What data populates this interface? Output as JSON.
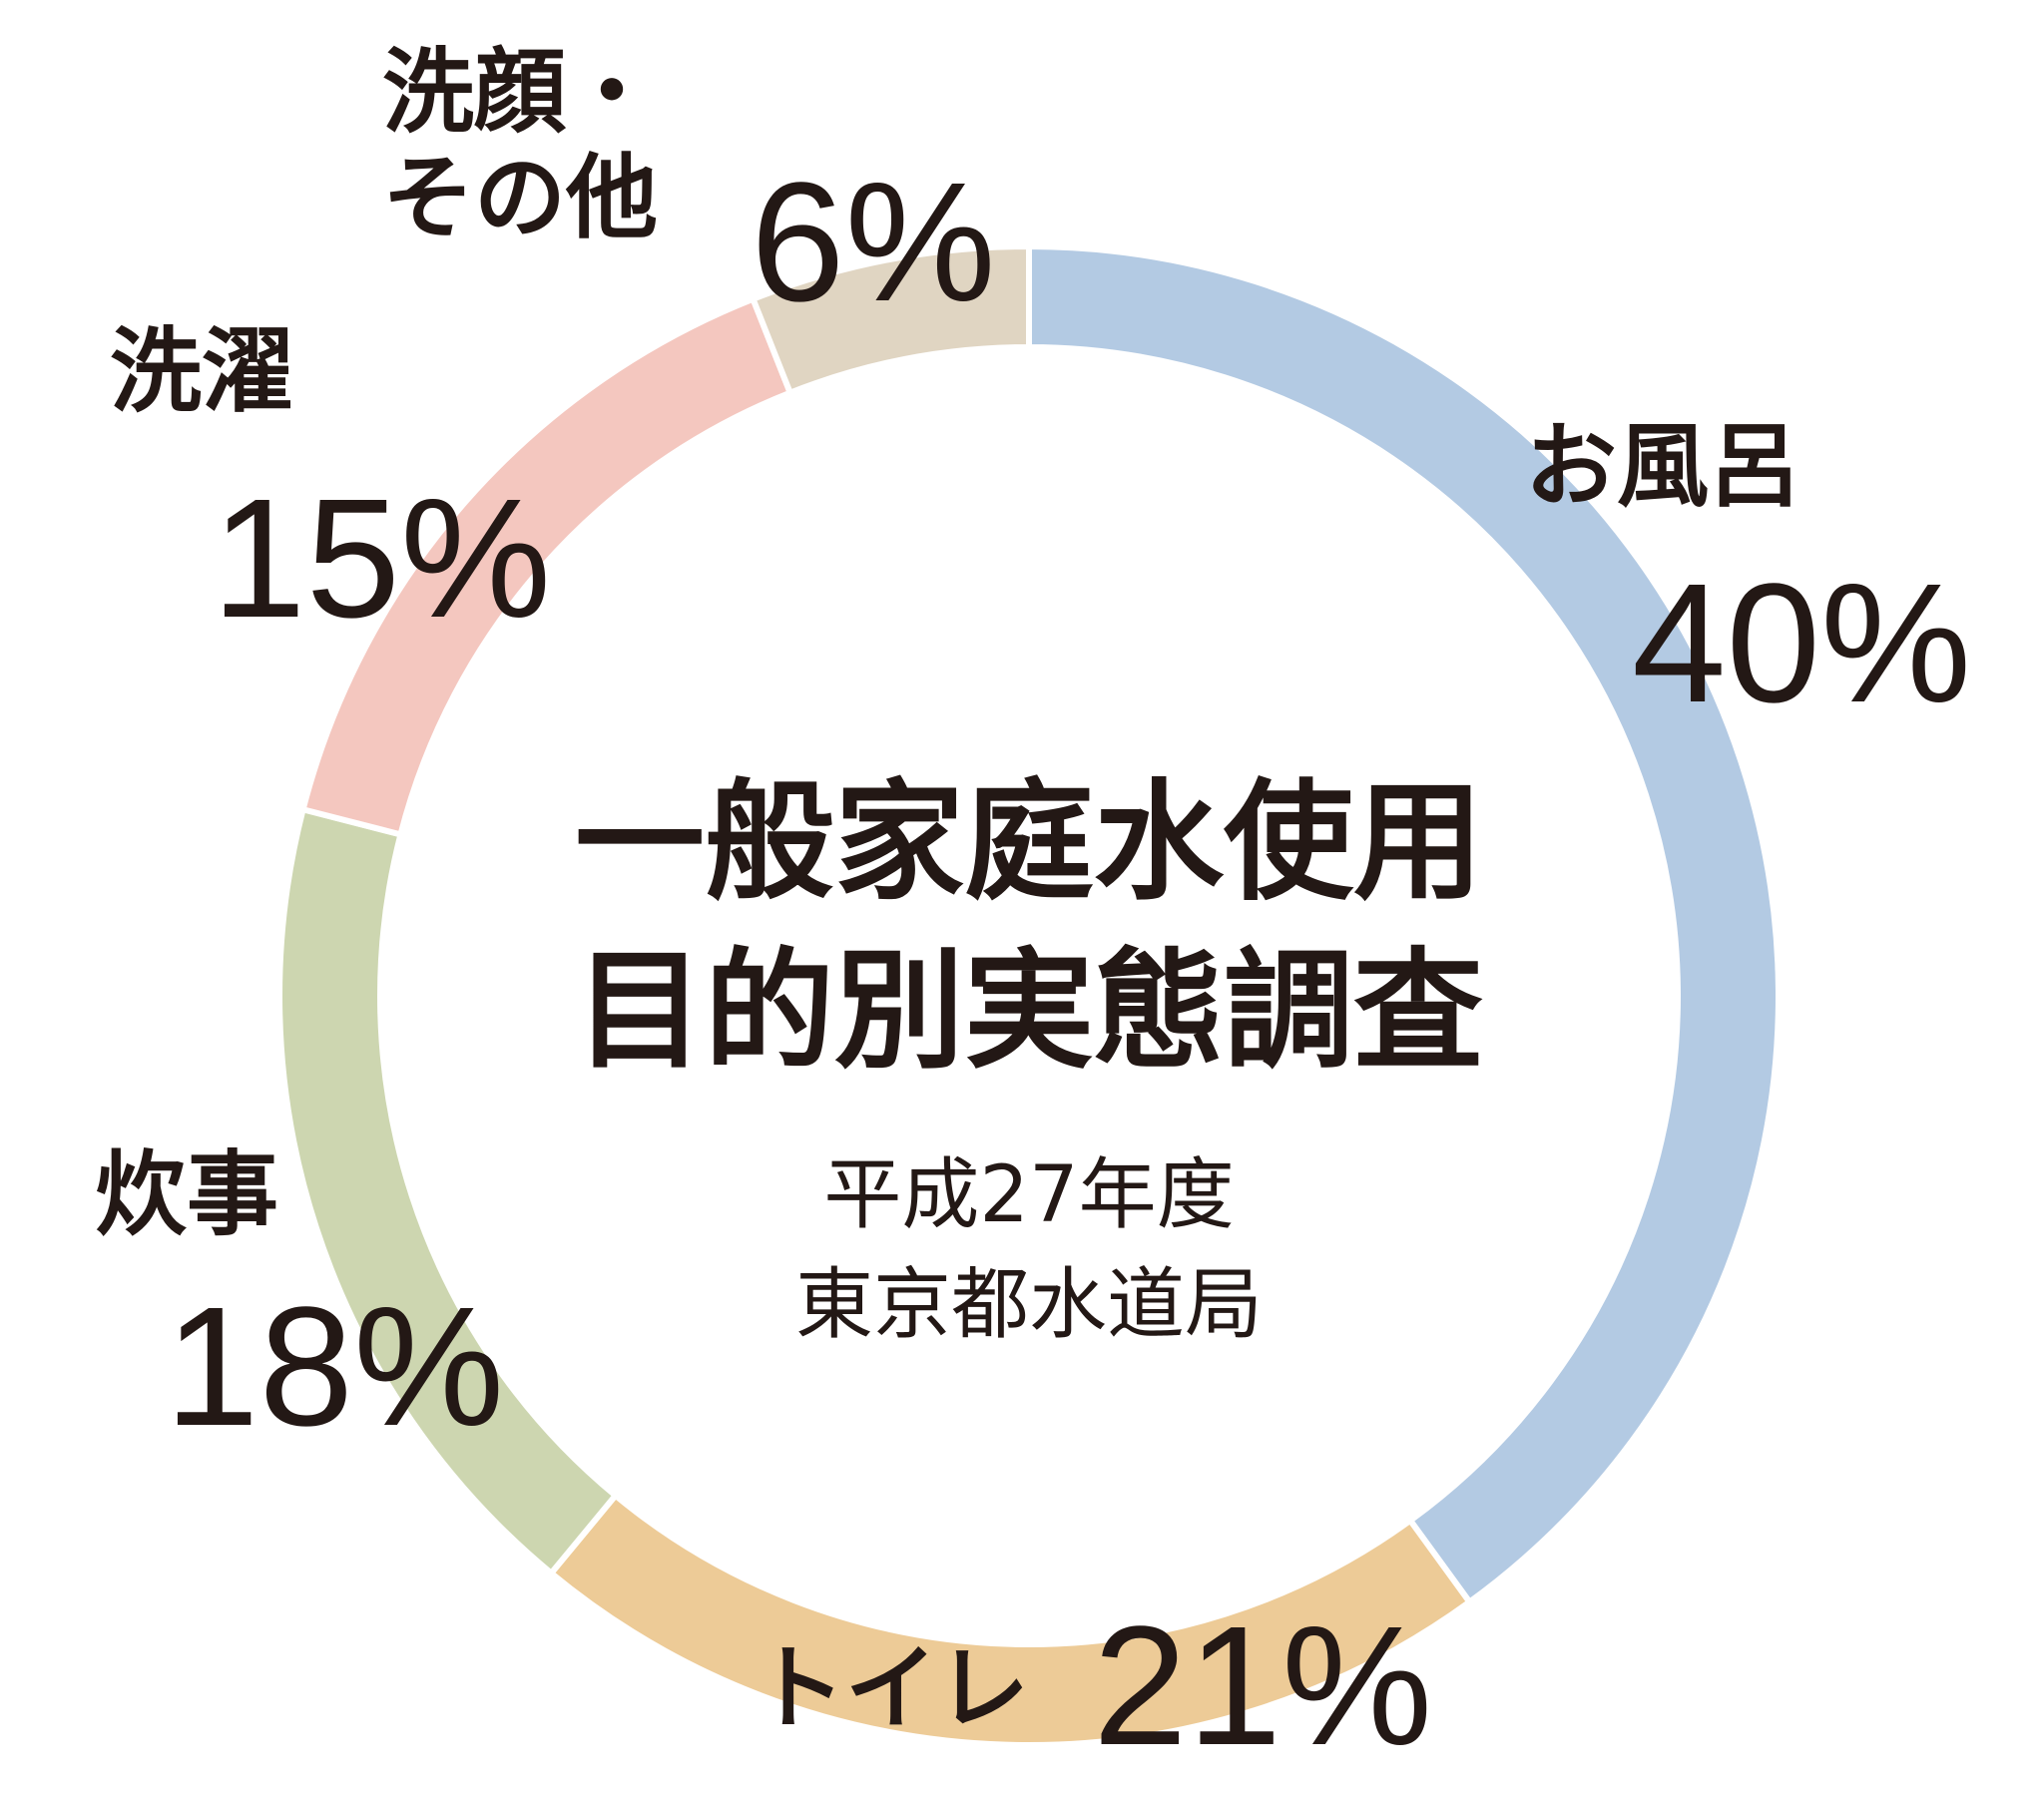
{
  "chart_data": {
    "type": "pie",
    "donut": true,
    "title": "一般家庭水使用目的別実態調査",
    "subtitle": "平成27年度",
    "source": "東京都水道局",
    "categories": [
      "お風呂",
      "トイレ",
      "炊事",
      "洗濯",
      "洗顔・その他"
    ],
    "values": [
      40,
      21,
      18,
      15,
      6
    ],
    "value_labels": [
      "40%",
      "21%",
      "18%",
      "15%",
      "6%"
    ],
    "colors": [
      "#b3cae3",
      "#edcb97",
      "#cdd6b0",
      "#f4c7bf",
      "#e0d5c2"
    ]
  }
}
